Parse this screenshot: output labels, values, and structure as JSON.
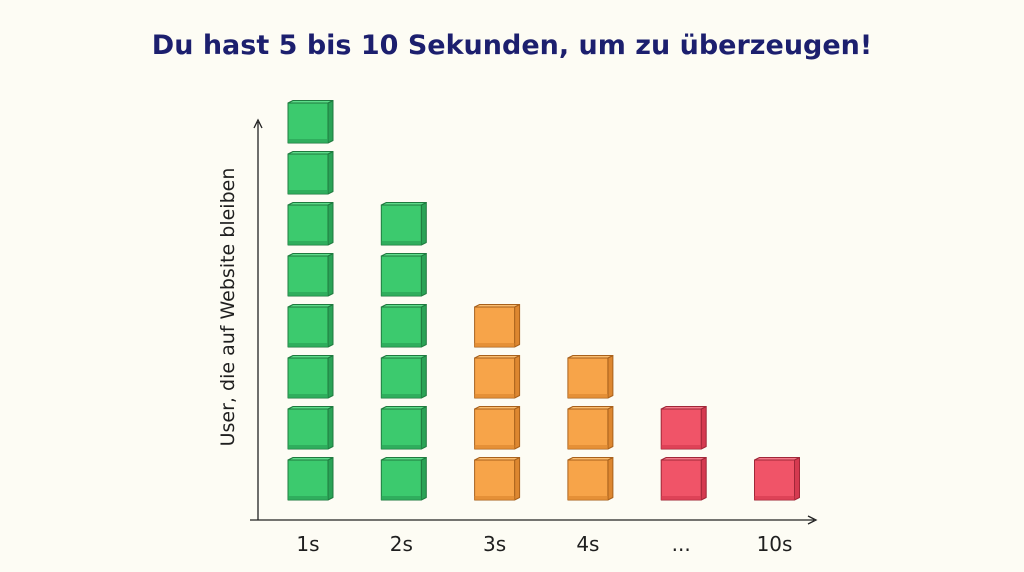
{
  "chart_data": {
    "type": "bar",
    "title": "Du hast 5 bis 10 Sekunden, um zu überzeugen!",
    "xlabel": "",
    "ylabel": "User, die auf Website bleiben",
    "categories": [
      "1s",
      "2s",
      "3s",
      "4s",
      "...",
      "10s"
    ],
    "values": [
      8,
      6,
      4,
      3,
      2,
      1
    ],
    "colors": [
      "green",
      "green",
      "orange",
      "orange",
      "red",
      "red"
    ],
    "palette": {
      "green": {
        "front": "#3cca6e",
        "side": "#2aa356",
        "top": "#5ddc8a",
        "edge": "#1f7a3f"
      },
      "orange": {
        "front": "#f7a449",
        "side": "#dd8730",
        "top": "#fbbd70",
        "edge": "#a8611c"
      },
      "red": {
        "front": "#f05468",
        "side": "#d53a50",
        "top": "#f57a8a",
        "edge": "#a02738"
      }
    },
    "grid": false,
    "legend": "none",
    "ylim": [
      0,
      8
    ]
  }
}
